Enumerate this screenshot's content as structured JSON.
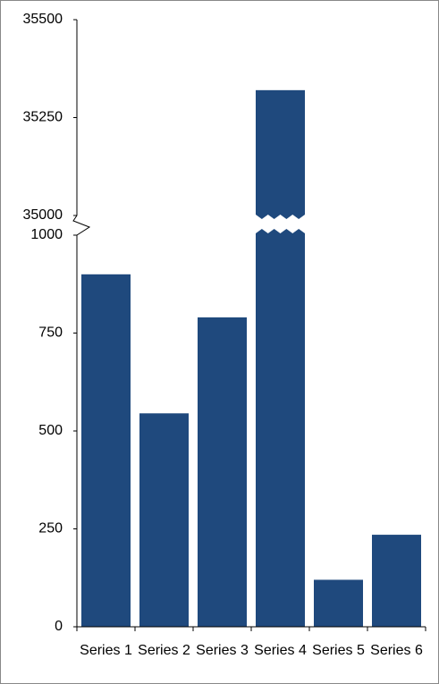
{
  "chart_data": {
    "type": "bar",
    "categories": [
      "Series 1",
      "Series 2",
      "Series 3",
      "Series 4",
      "Series 5",
      "Series 6"
    ],
    "values": [
      900,
      545,
      790,
      35320,
      120,
      235
    ],
    "color": "#1f497d",
    "ylim": [
      0,
      35500
    ],
    "axis_break": [
      1000,
      35000
    ],
    "yticks": [
      0,
      250,
      500,
      750,
      1000,
      35000,
      35250,
      35500
    ],
    "grid": false
  }
}
